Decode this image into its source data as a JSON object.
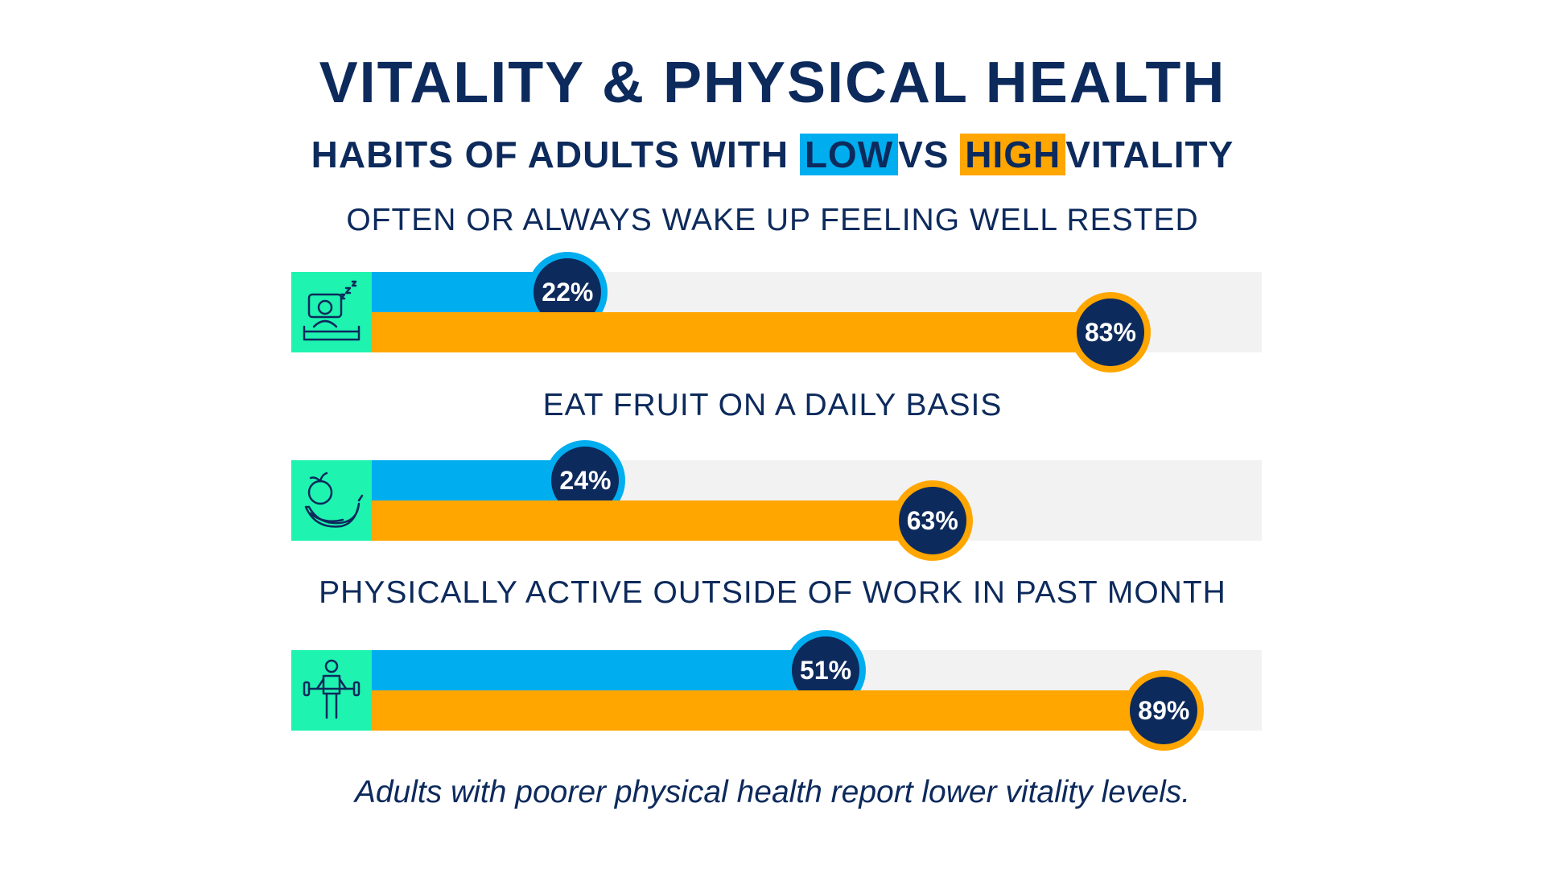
{
  "title": "VITALITY & PHYSICAL HEALTH",
  "subtitle": {
    "prefix": "HABITS OF ADULTS WITH",
    "low": "LOW",
    "middle": "VS",
    "high": "HIGH",
    "suffix": "VITALITY"
  },
  "colors": {
    "low": "#00aeef",
    "high": "#ffa600",
    "navy": "#0d2a5c",
    "icon_bg": "#1ef3b0",
    "track": "#f2f2f2"
  },
  "chart_data": {
    "type": "bar",
    "categories": [
      "OFTEN OR ALWAYS WAKE UP FEELING WELL RESTED",
      "EAT FRUIT ON A DAILY BASIS",
      "PHYSICALLY ACTIVE OUTSIDE OF WORK IN PAST MONTH"
    ],
    "series": [
      {
        "key": "low",
        "values": [
          22,
          24,
          51
        ],
        "labels": [
          "22%",
          "24%",
          "51%"
        ]
      },
      {
        "key": "high",
        "values": [
          83,
          63,
          89
        ],
        "labels": [
          "83%",
          "63%",
          "89%"
        ]
      }
    ],
    "icons": [
      "sleeping-person-icon",
      "fruit-banana-icon",
      "weightlifting-person-icon"
    ],
    "xlim": [
      0,
      100
    ]
  },
  "footnote": "Adults with poorer physical health report lower vitality levels."
}
